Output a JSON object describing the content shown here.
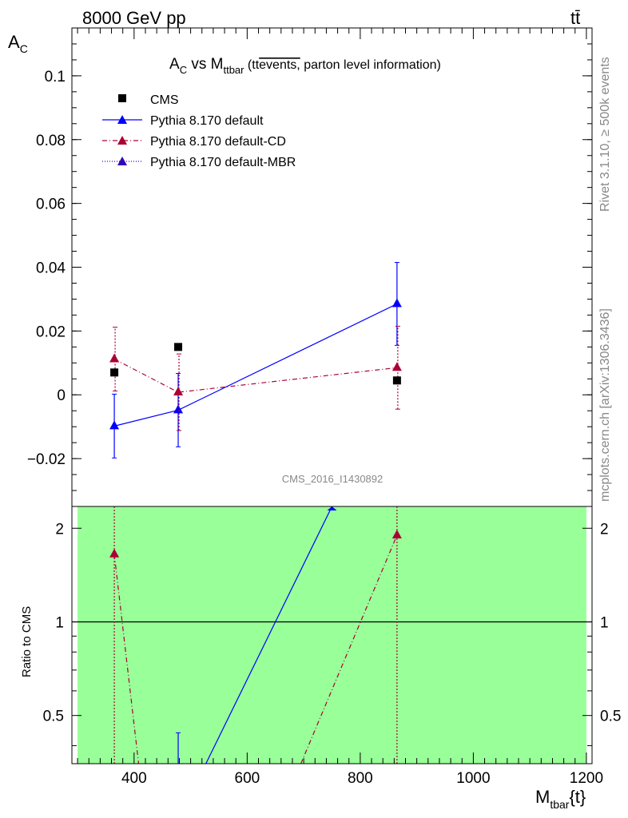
{
  "header": {
    "left": "8000 GeV pp",
    "right": "tt̄"
  },
  "side_labels": {
    "rivet": "Rivet 3.1.10, ≥ 500k events",
    "mcplots": "mcplots.cern.ch [arXiv:1306.3436]"
  },
  "analysis_id": "CMS_2016_I1430892",
  "chart_data": [
    {
      "type": "scatter",
      "title_parts": {
        "a": "A",
        "a_sub": "C",
        "vs": " vs M",
        "m_sub": "ttbar",
        "paren_open": " (tt",
        "overline": "events,",
        "rest": " parton level information)"
      },
      "ylabel": {
        "main": "A",
        "sub": "C"
      },
      "xlim": [
        290,
        1210
      ],
      "ylim": [
        -0.035,
        0.115
      ],
      "y_ticks": [
        -0.02,
        0,
        0.02,
        0.04,
        0.06,
        0.08,
        0.1
      ],
      "y_tick_labels": [
        "−0.02",
        "0",
        "0.02",
        "0.04",
        "0.06",
        "0.08",
        "0.1"
      ],
      "legend_placement": "top-left",
      "series": [
        {
          "name": "CMS",
          "style": "marker",
          "color": "#000000",
          "x": [
            365,
            478,
            865
          ],
          "y": [
            0.007,
            0.015,
            0.0045
          ]
        },
        {
          "name": "Pythia 8.170 default",
          "style": "solid",
          "color": "#0000ff",
          "x": [
            365,
            478,
            865
          ],
          "y": [
            -0.0098,
            -0.0048,
            0.0285
          ],
          "err": [
            0.01,
            0.0115,
            0.013
          ]
        },
        {
          "name": "Pythia 8.170 default-CD",
          "style": "dashdot",
          "color": "#aa0033",
          "x": [
            365,
            478,
            865
          ],
          "y": [
            0.0112,
            0.0008,
            0.0085
          ],
          "err": [
            0.01,
            0.012,
            0.013
          ]
        },
        {
          "name": "Pythia 8.170 default-MBR",
          "style": "dotted",
          "color": "#3300bb",
          "x": [],
          "y": []
        }
      ]
    },
    {
      "type": "line",
      "ylabel": "Ratio to CMS",
      "xlabel": {
        "main": "M",
        "sub": "tbar",
        "suffix": "{t}"
      },
      "xlim": [
        290,
        1210
      ],
      "ylim": [
        0.35,
        2.35
      ],
      "band": {
        "x": [
          300,
          1200
        ],
        "color": "#99ff99"
      },
      "x_ticks": [
        400,
        600,
        800,
        1000,
        1200
      ],
      "x_tick_labels": [
        "400",
        "600",
        "800",
        "1000",
        "1200"
      ],
      "y_ticks": [
        0.5,
        1,
        2
      ],
      "y_tick_labels": [
        "0.5",
        "1",
        "2"
      ],
      "series": [
        {
          "name": "Pythia 8.170 default",
          "color": "#0000ff",
          "segment": {
            "x": [
              527,
              750
            ],
            "y": [
              0.35,
              2.35
            ]
          },
          "errbar": {
            "x": 478,
            "y": [
              0.35,
              0.44
            ]
          }
        },
        {
          "name": "Pythia 8.170 default-CD",
          "color": "#aa0033",
          "markers": {
            "x": [
              365,
              865
            ],
            "y": [
              1.65,
              1.9
            ]
          },
          "segments": [
            {
              "x": [
                365,
                408
              ],
              "y": [
                1.65,
                0.35
              ]
            },
            {
              "x": [
                695,
                865
              ],
              "y": [
                0.35,
                1.9
              ]
            }
          ],
          "verticals": [
            365,
            865
          ]
        }
      ]
    }
  ]
}
